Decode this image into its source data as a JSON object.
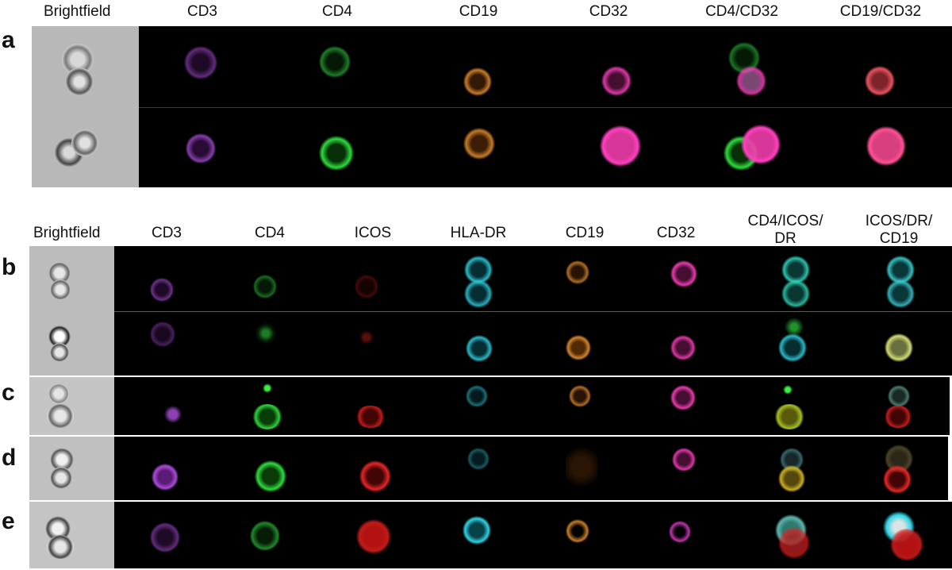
{
  "panel_a": {
    "letter": "a",
    "headers": [
      "Brightfield",
      "CD3",
      "CD4",
      "CD19",
      "CD32",
      "CD4/CD32",
      "CD19/CD32"
    ],
    "colors": {
      "cd3": "#b050e0",
      "cd4": "#30d040",
      "cd19": "#e89030",
      "cd32": "#ff40c0",
      "merge_cd19_cd32": "#ff5a6a"
    }
  },
  "panel_b": {
    "letter": "b",
    "headers": [
      "Brightfield",
      "CD3",
      "CD4",
      "ICOS",
      "HLA-DR",
      "CD19",
      "CD32",
      "CD4/ICOS/\nDR",
      "ICOS/DR/\nCD19"
    ],
    "colors": {
      "cd3": "#b050e0",
      "cd4": "#30d040",
      "icos": "#e02020",
      "hla_dr": "#30c8d8",
      "cd19": "#e89030",
      "cd32": "#ff40c0"
    }
  },
  "panel_c": {
    "letter": "c"
  },
  "panel_d": {
    "letter": "d"
  },
  "panel_e": {
    "letter": "e"
  }
}
